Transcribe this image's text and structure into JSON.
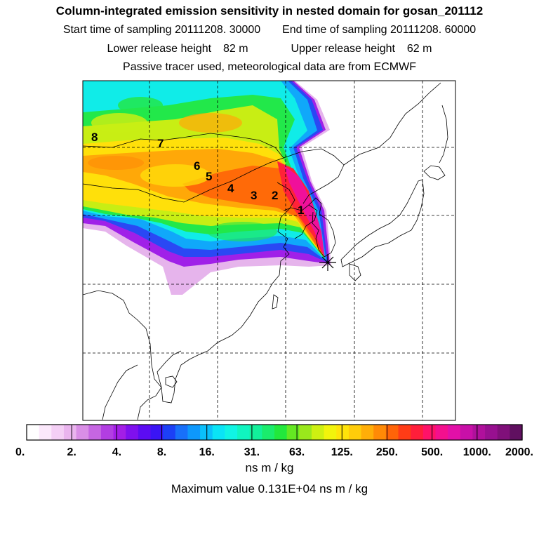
{
  "header": {
    "title": "Column-integrated emission sensitivity in nested domain for gosan_201112",
    "start_label": "Start time of sampling",
    "start_value": "20111208. 30000",
    "end_label": "End time of sampling",
    "end_value": "20111208. 60000",
    "lower_label": "Lower release height",
    "lower_value": "82 m",
    "upper_label": "Upper release height",
    "upper_value": "62 m",
    "note": "Passive tracer used, meteorological data are from ECMWF"
  },
  "chart_data": {
    "type": "heatmap",
    "title": "Column-integrated emission sensitivity in nested domain for gosan_201112",
    "plume_markers": [
      "1",
      "2",
      "3",
      "4",
      "5",
      "6",
      "7",
      "8"
    ],
    "receptor_symbol": "*",
    "colorbar": {
      "tick_labels": [
        "0.",
        "2.",
        "4.",
        "8.",
        "16.",
        "31.",
        "63.",
        "125.",
        "250.",
        "500.",
        "1000.",
        "2000."
      ],
      "ticks": [
        0,
        2,
        4,
        8,
        16,
        31,
        63,
        125,
        250,
        500,
        1000,
        2000
      ],
      "colors": [
        "#ffffff",
        "#fbe8fb",
        "#f4cff5",
        "#eab4ee",
        "#d98ee6",
        "#c666e2",
        "#b23ee2",
        "#a31ee6",
        "#7f10ee",
        "#5c0cf2",
        "#3a14f4",
        "#1c40f6",
        "#1870fa",
        "#0e98fc",
        "#0ac0fc",
        "#0ae4f6",
        "#10f4e4",
        "#10f4c0",
        "#12f09a",
        "#1aec6c",
        "#22e83c",
        "#64e822",
        "#9ae81c",
        "#cef012",
        "#f2f40c",
        "#ffe40a",
        "#ffcc0a",
        "#ffae08",
        "#ff8a06",
        "#ff6408",
        "#ff3c16",
        "#ff1e3a",
        "#ff1268",
        "#f4108e",
        "#e210a8",
        "#c810a8",
        "#b0109c",
        "#981090",
        "#80107a",
        "#601060"
      ],
      "units": "ns m / kg"
    },
    "max_label": "Maximum value",
    "max_value": "0.131E+04",
    "max_units": "ns m / kg"
  }
}
